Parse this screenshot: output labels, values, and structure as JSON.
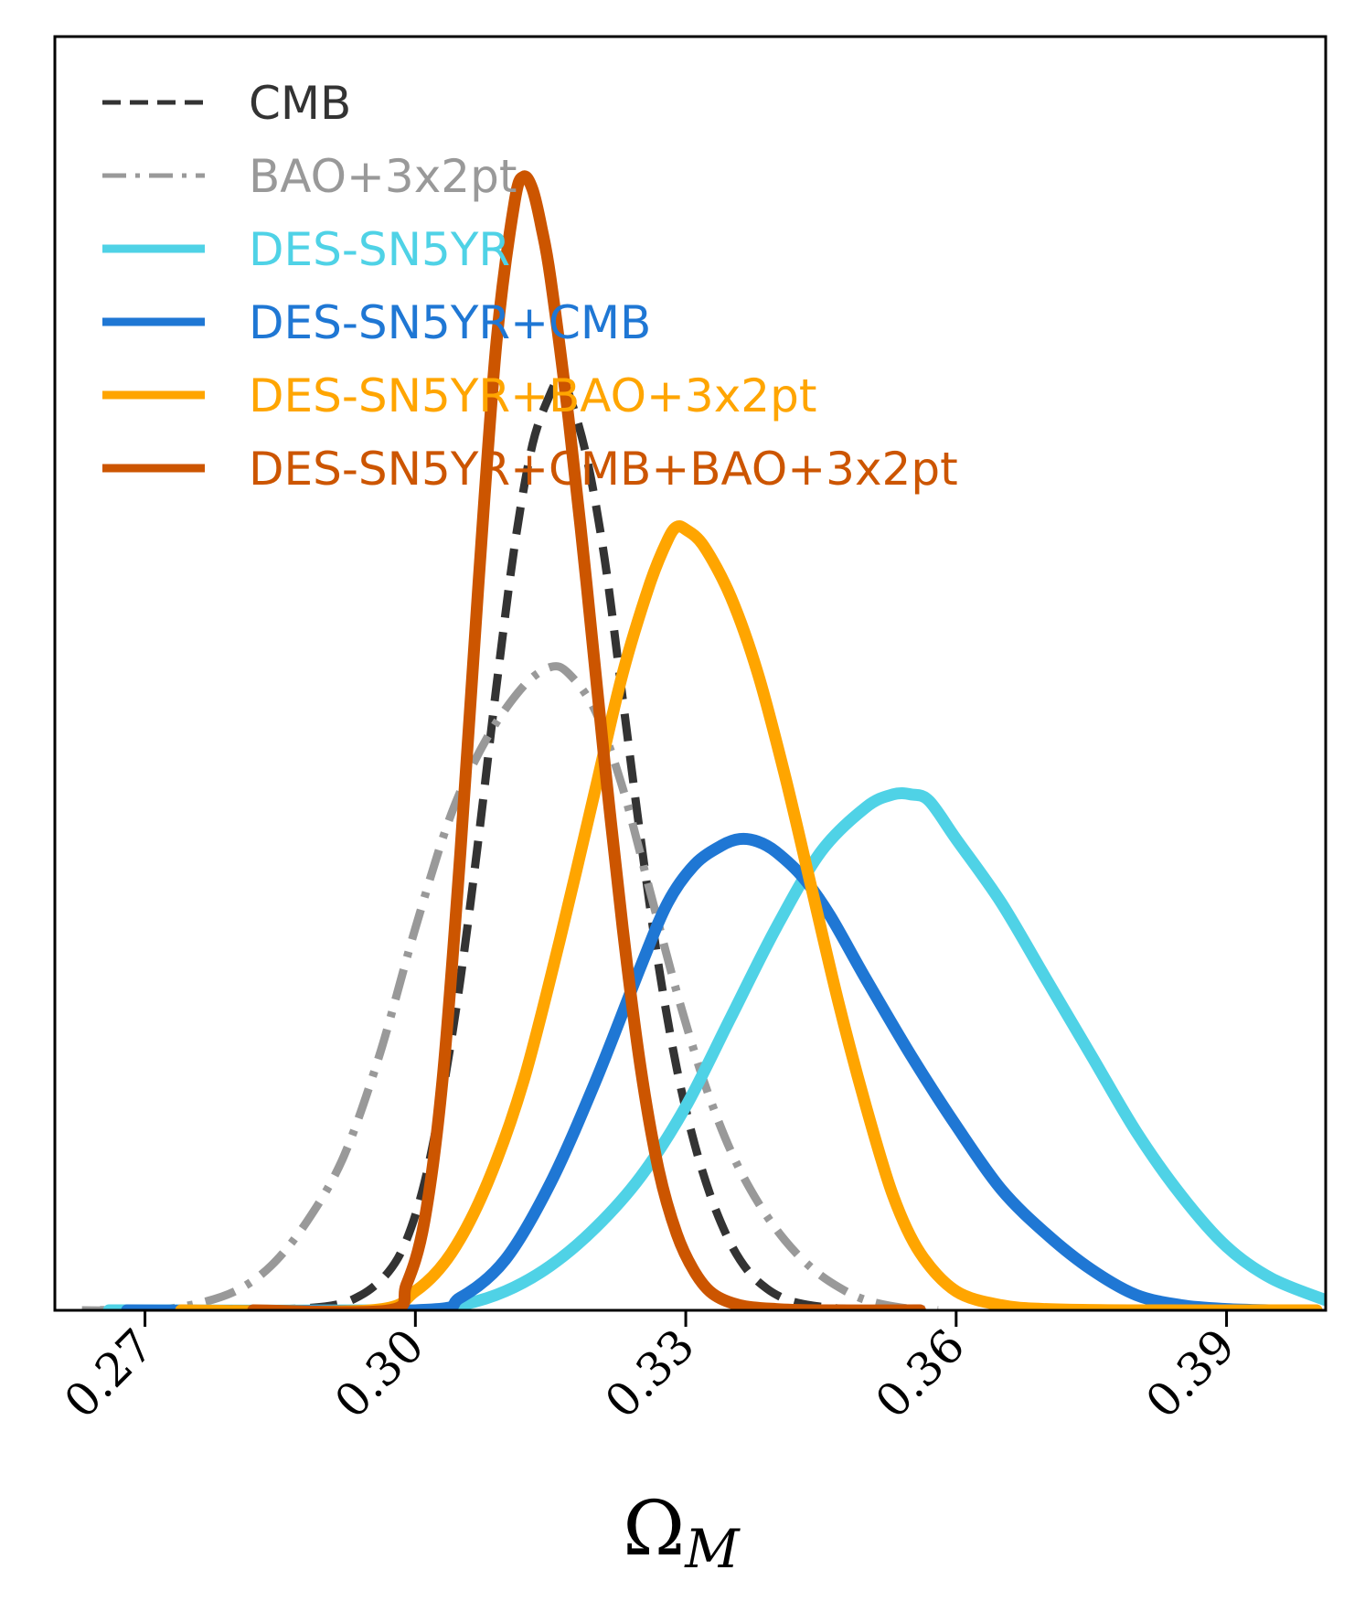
{
  "chart_data": {
    "type": "line",
    "title": "",
    "xlabel": "Ω",
    "xlabel_subscript": "M",
    "ylabel": "",
    "xlim": [
      0.26,
      0.401
    ],
    "ylim": [
      0,
      1.0
    ],
    "xticks": [
      0.27,
      0.3,
      0.33,
      0.36,
      0.39
    ],
    "xtick_labels": [
      "0.27",
      "0.30",
      "0.33",
      "0.36",
      "0.39"
    ],
    "legend_position": "upper-left",
    "series": [
      {
        "name": "CMB",
        "color": "#333333",
        "style": "dashed",
        "x": [
          0.265,
          0.28,
          0.29,
          0.294,
          0.297,
          0.299,
          0.301,
          0.303,
          0.305,
          0.307,
          0.309,
          0.311,
          0.313,
          0.315,
          0.316,
          0.317,
          0.319,
          0.321,
          0.323,
          0.325,
          0.327,
          0.329,
          0.331,
          0.333,
          0.335,
          0.337,
          0.339,
          0.341,
          0.343,
          0.346,
          0.35,
          0.356
        ],
        "values": [
          0,
          0.0,
          0.003,
          0.012,
          0.03,
          0.055,
          0.1,
          0.17,
          0.26,
          0.37,
          0.49,
          0.6,
          0.68,
          0.72,
          0.73,
          0.72,
          0.67,
          0.59,
          0.48,
          0.37,
          0.27,
          0.19,
          0.13,
          0.085,
          0.052,
          0.03,
          0.017,
          0.009,
          0.005,
          0.002,
          0.0006,
          0
        ]
      },
      {
        "name": "BAO+3x2pt",
        "color": "#999999",
        "style": "dashdot",
        "x": [
          0.263,
          0.27,
          0.275,
          0.28,
          0.284,
          0.288,
          0.292,
          0.296,
          0.3,
          0.304,
          0.308,
          0.312,
          0.315,
          0.317,
          0.32,
          0.323,
          0.326,
          0.329,
          0.332,
          0.335,
          0.338,
          0.341,
          0.344,
          0.347,
          0.35,
          0.354,
          0.358
        ],
        "values": [
          0,
          0.0,
          0.004,
          0.015,
          0.035,
          0.07,
          0.12,
          0.2,
          0.3,
          0.39,
          0.45,
          0.49,
          0.505,
          0.5,
          0.47,
          0.41,
          0.33,
          0.25,
          0.18,
          0.125,
          0.085,
          0.055,
          0.033,
          0.018,
          0.008,
          0.002,
          0
        ]
      },
      {
        "name": "DES-SN5YR",
        "color": "#4fd2e6",
        "style": "solid",
        "x": [
          0.266,
          0.3,
          0.305,
          0.31,
          0.315,
          0.32,
          0.325,
          0.33,
          0.335,
          0.34,
          0.345,
          0.35,
          0.353,
          0.355,
          0.357,
          0.36,
          0.365,
          0.37,
          0.375,
          0.38,
          0.385,
          0.39,
          0.395,
          0.401
        ],
        "values": [
          0,
          0.0,
          0.004,
          0.015,
          0.035,
          0.065,
          0.105,
          0.16,
          0.23,
          0.3,
          0.36,
          0.395,
          0.405,
          0.405,
          0.4,
          0.37,
          0.32,
          0.26,
          0.2,
          0.14,
          0.09,
          0.05,
          0.025,
          0.008
        ]
      },
      {
        "name": "DES-SN5YR+CMB",
        "color": "#1f77d4",
        "style": "solid",
        "x": [
          0.268,
          0.3,
          0.305,
          0.31,
          0.315,
          0.32,
          0.325,
          0.328,
          0.331,
          0.334,
          0.336,
          0.338,
          0.34,
          0.343,
          0.346,
          0.35,
          0.355,
          0.36,
          0.365,
          0.37,
          0.375,
          0.38,
          0.385,
          0.39,
          0.395
        ],
        "values": [
          0,
          0.0,
          0.01,
          0.04,
          0.1,
          0.18,
          0.27,
          0.32,
          0.35,
          0.365,
          0.37,
          0.368,
          0.36,
          0.34,
          0.31,
          0.26,
          0.2,
          0.145,
          0.095,
          0.06,
          0.032,
          0.012,
          0.004,
          0.001,
          0
        ]
      },
      {
        "name": "DES-SN5YR+BAO+3x2pt",
        "color": "#ffa500",
        "style": "solid",
        "x": [
          0.274,
          0.295,
          0.3,
          0.304,
          0.308,
          0.312,
          0.316,
          0.32,
          0.323,
          0.326,
          0.328,
          0.329,
          0.33,
          0.332,
          0.335,
          0.338,
          0.341,
          0.344,
          0.347,
          0.35,
          0.353,
          0.356,
          0.36,
          0.365,
          0.37,
          0.38,
          0.4
        ],
        "values": [
          0,
          0.0,
          0.015,
          0.045,
          0.1,
          0.18,
          0.29,
          0.41,
          0.5,
          0.57,
          0.605,
          0.615,
          0.613,
          0.6,
          0.56,
          0.5,
          0.42,
          0.33,
          0.24,
          0.16,
          0.09,
          0.045,
          0.015,
          0.004,
          0.001,
          0,
          0
        ]
      },
      {
        "name": "DES-SN5YR+CMB+BAO+3x2pt",
        "color": "#cc5500",
        "style": "solid",
        "x": [
          0.282,
          0.297,
          0.299,
          0.301,
          0.303,
          0.305,
          0.307,
          0.309,
          0.311,
          0.312,
          0.313,
          0.314,
          0.315,
          0.317,
          0.319,
          0.321,
          0.323,
          0.325,
          0.327,
          0.329,
          0.331,
          0.333,
          0.336,
          0.34,
          0.345,
          0.356
        ],
        "values": [
          0,
          0.0,
          0.02,
          0.07,
          0.18,
          0.36,
          0.57,
          0.76,
          0.87,
          0.89,
          0.88,
          0.85,
          0.81,
          0.7,
          0.57,
          0.43,
          0.3,
          0.19,
          0.11,
          0.06,
          0.03,
          0.013,
          0.004,
          0.001,
          0,
          0
        ]
      }
    ]
  }
}
